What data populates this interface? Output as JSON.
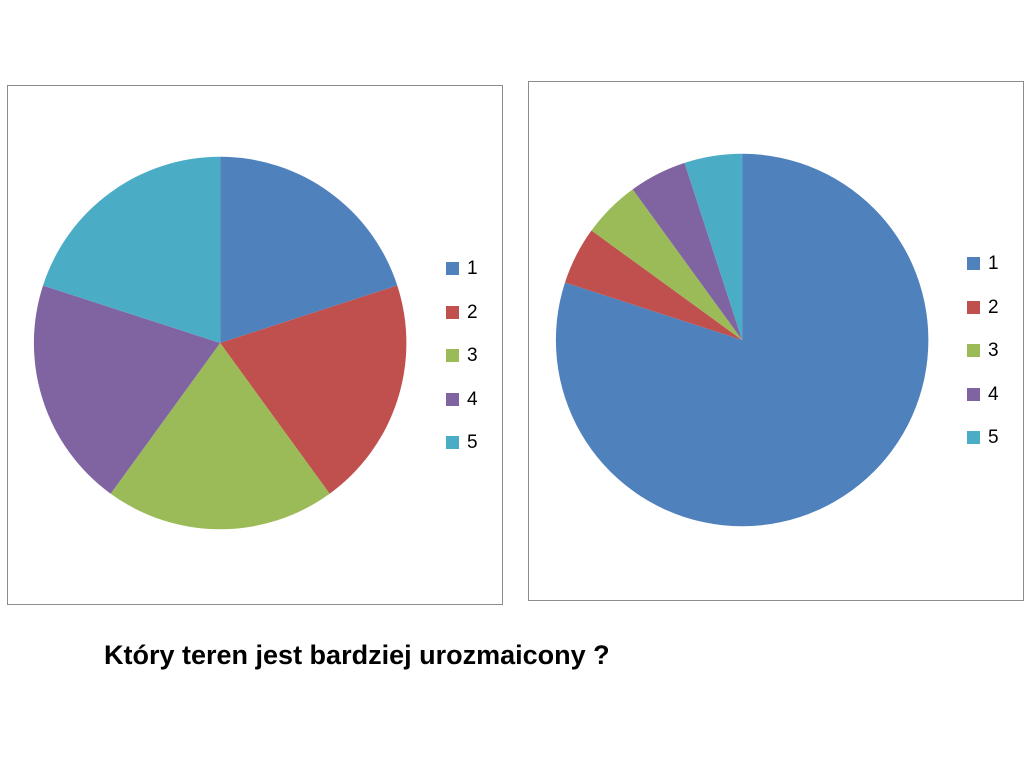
{
  "chart_data": [
    {
      "type": "pie",
      "categories": [
        "1",
        "2",
        "3",
        "4",
        "5"
      ],
      "values": [
        20,
        20,
        20,
        20,
        20
      ],
      "colors": [
        "#4F81BD",
        "#C0504D",
        "#9BBB59",
        "#8064A2",
        "#4BACC6"
      ],
      "legend": "right",
      "start_angle": "12 o'clock",
      "direction": "clockwise"
    },
    {
      "type": "pie",
      "categories": [
        "1",
        "2",
        "3",
        "4",
        "5"
      ],
      "values": [
        80,
        5,
        5,
        5,
        5
      ],
      "colors": [
        "#4F81BD",
        "#C0504D",
        "#9BBB59",
        "#8064A2",
        "#4BACC6"
      ],
      "legend": "right",
      "start_angle": "12 o'clock",
      "direction": "clockwise"
    }
  ],
  "question": "Który teren jest bardziej urozmaicony ?"
}
